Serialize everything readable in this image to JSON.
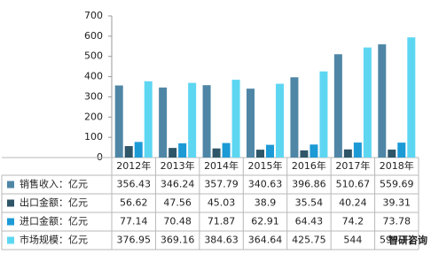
{
  "chart_data": {
    "type": "bar",
    "categories": [
      "2012年",
      "2013年",
      "2014年",
      "2015年",
      "2016年",
      "2017年",
      "2018年"
    ],
    "series": [
      {
        "name": "销售收入：亿元",
        "color": "#4f86a6",
        "values": [
          356.43,
          346.24,
          357.79,
          340.63,
          396.86,
          510.67,
          559.69
        ]
      },
      {
        "name": "出口金额：亿元",
        "color": "#2f5568",
        "values": [
          56.62,
          47.56,
          45.03,
          38.9,
          35.54,
          40.24,
          39.31
        ]
      },
      {
        "name": "进口金额：亿元",
        "color": "#1c9ad6",
        "values": [
          77.14,
          70.48,
          71.87,
          62.91,
          64.43,
          74.2,
          73.78
        ]
      },
      {
        "name": "市场规模：亿元",
        "color": "#5dd6f2",
        "values": [
          376.95,
          369.16,
          384.63,
          364.64,
          425.75,
          544,
          594.11
        ]
      }
    ],
    "ylim": [
      0,
      700
    ],
    "yticks": [
      0,
      100,
      200,
      300,
      400,
      500,
      600,
      700
    ],
    "watermark": "智研咨询"
  }
}
